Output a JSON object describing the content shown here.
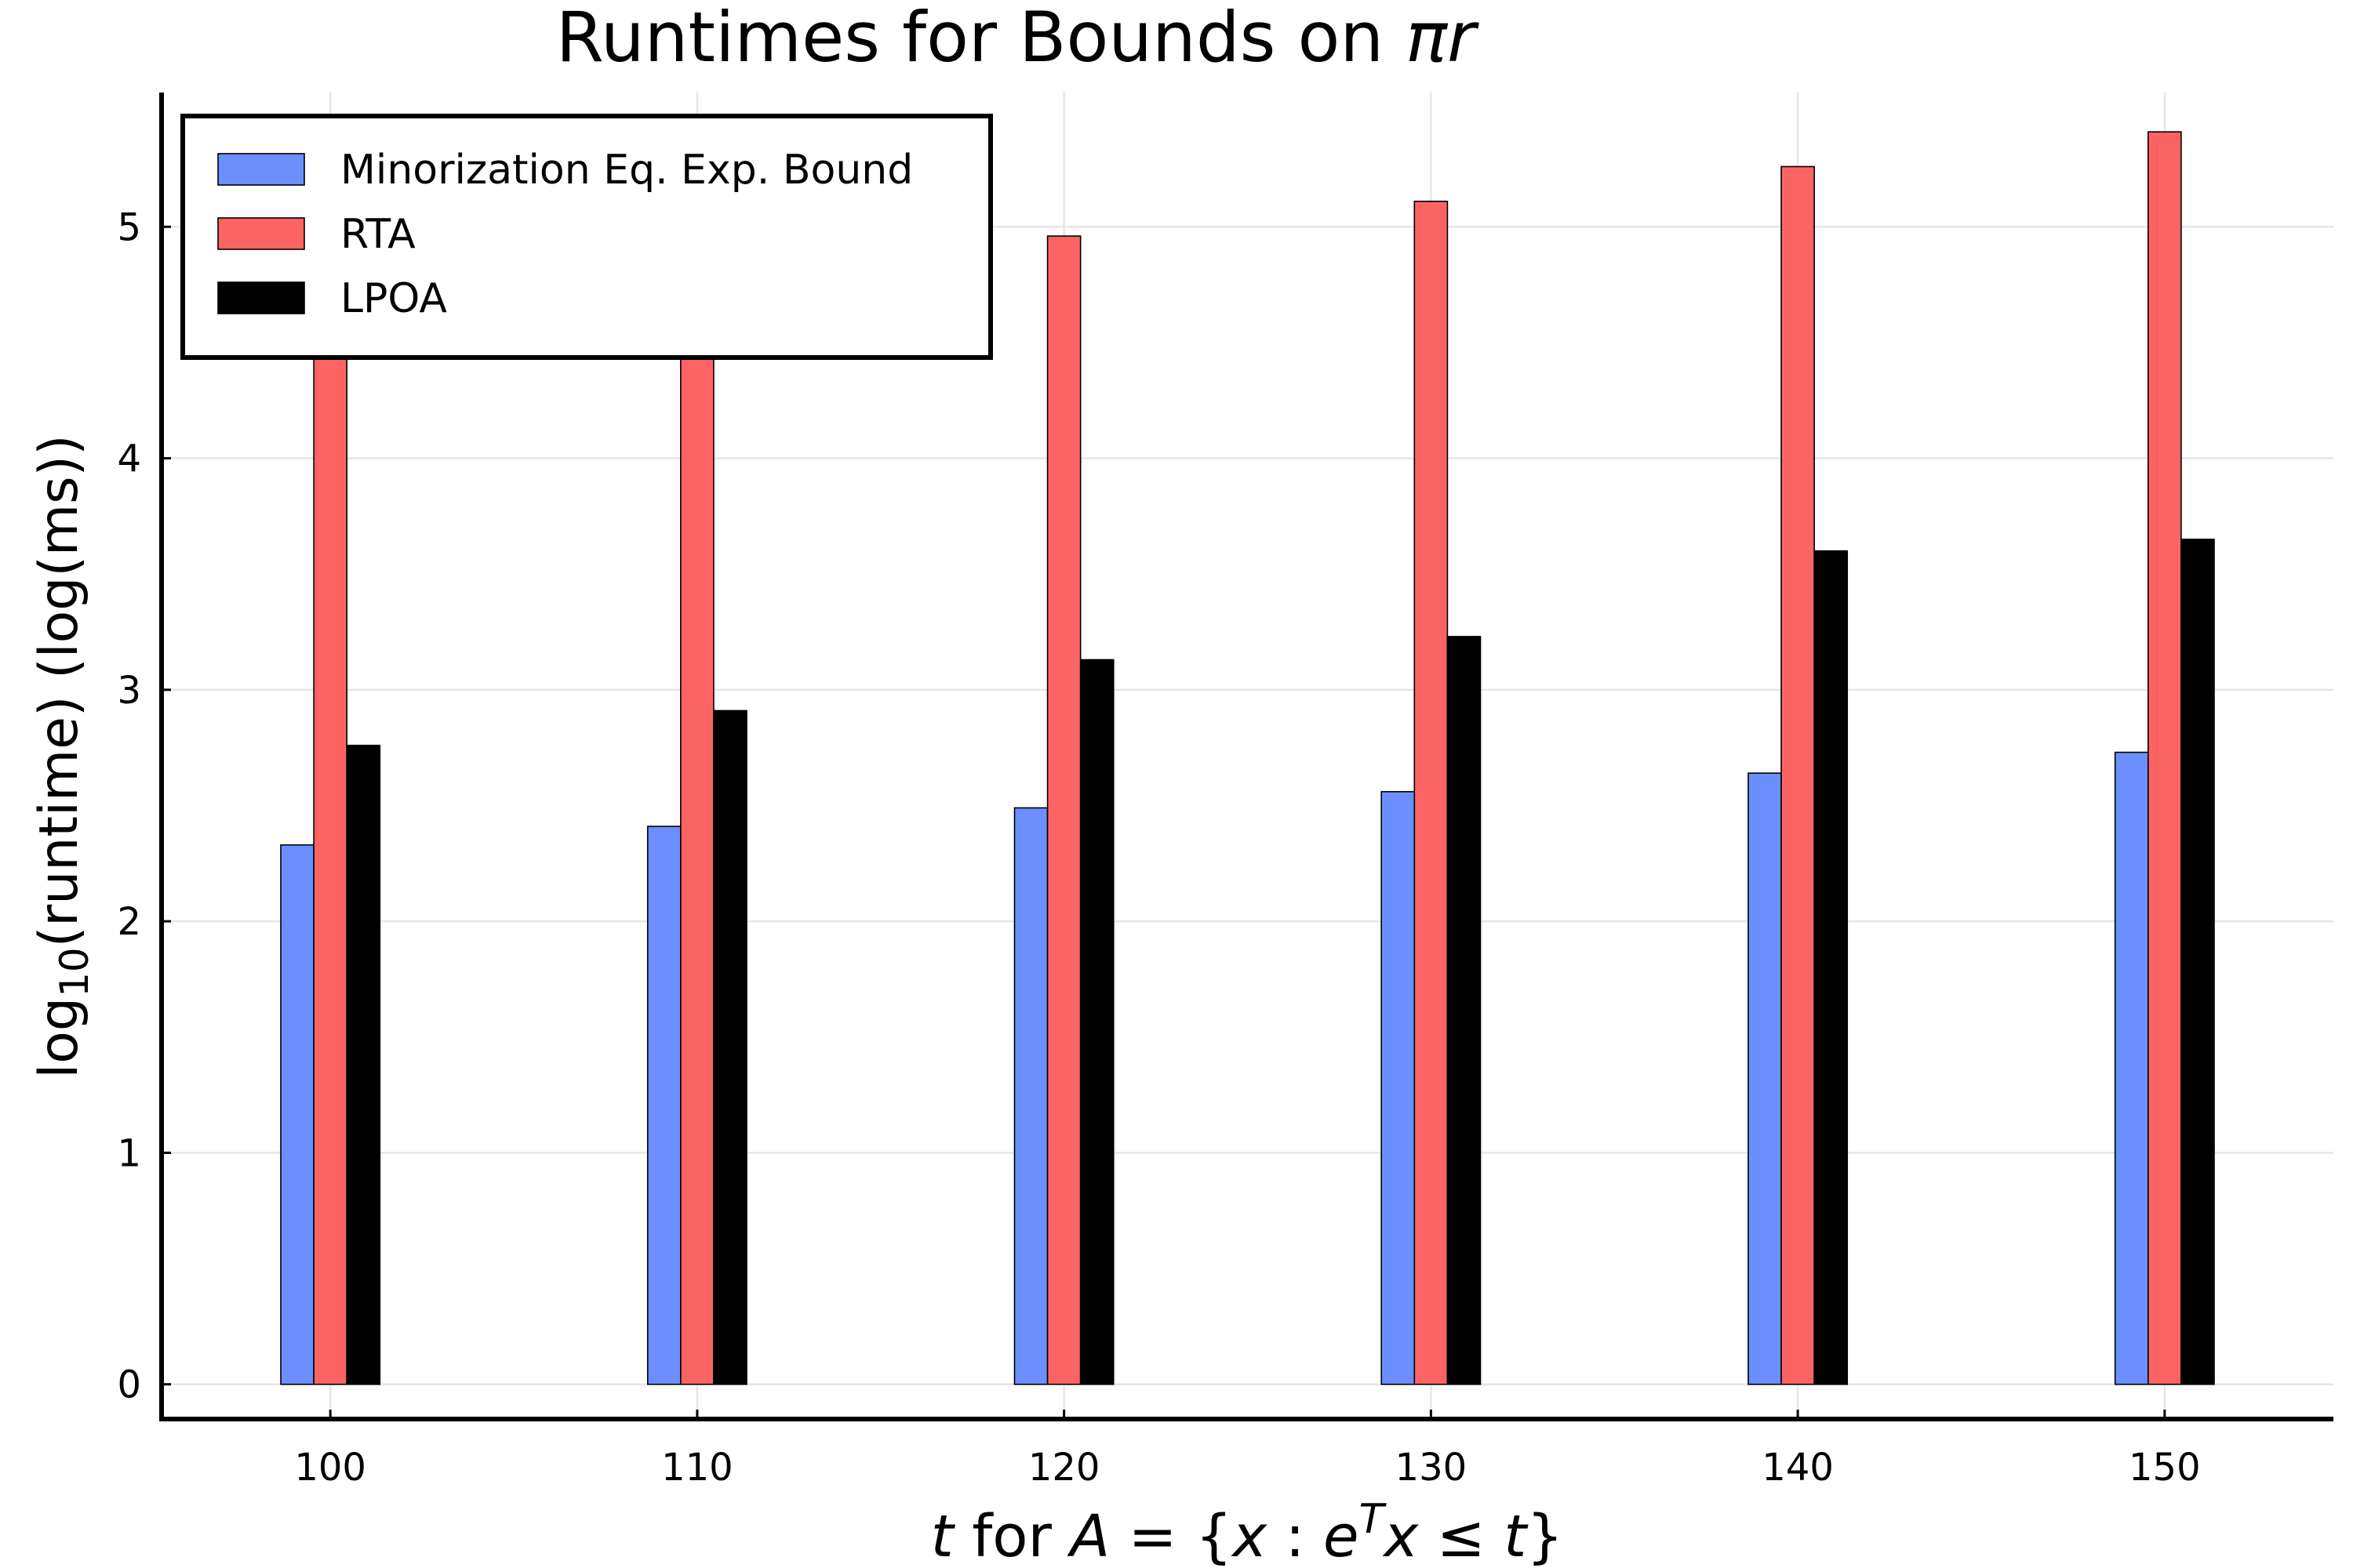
{
  "chart_data": {
    "type": "bar",
    "title": "Runtimes for Bounds on ",
    "title_math": "πr",
    "xlabel": {
      "var": "t",
      "mid": " for ",
      "set_name": "A",
      "eq": " = {",
      "x1": "x",
      "colon": " : ",
      "e": "e",
      "sup": "T",
      "x2": "x",
      "le": " ≤ ",
      "t2": "t",
      "close": "}"
    },
    "ylabel": {
      "prefix": "log",
      "sub": "10",
      "suffix": "(runtime) (log(ms))"
    },
    "categories": [
      "100",
      "110",
      "120",
      "130",
      "140",
      "150"
    ],
    "x": [
      100,
      110,
      120,
      130,
      140,
      150
    ],
    "xlim": [
      95.4,
      154.6
    ],
    "ylim": [
      -0.15,
      5.58
    ],
    "yticks": [
      0,
      1,
      2,
      3,
      4,
      5
    ],
    "grid": true,
    "legend_position": "top-left",
    "series": [
      {
        "name": "Minorization Eq. Exp. Bound",
        "color": "#6b8ffd",
        "values": [
          2.33,
          2.41,
          2.49,
          2.56,
          2.64,
          2.73
        ]
      },
      {
        "name": "RTA",
        "color": "#fc6463",
        "values": [
          4.62,
          4.79,
          4.96,
          5.11,
          5.26,
          5.41
        ]
      },
      {
        "name": "LPOA",
        "color": "#000000",
        "values": [
          2.76,
          2.91,
          3.13,
          3.23,
          3.6,
          3.65
        ]
      }
    ]
  }
}
